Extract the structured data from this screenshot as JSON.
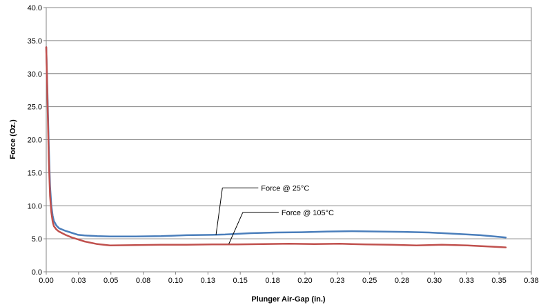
{
  "chart_data": {
    "type": "line",
    "title": "",
    "xlabel": "Plunger Air-Gap (in.)",
    "ylabel": "Force (Oz.)",
    "xlim": [
      0,
      0.38
    ],
    "ylim": [
      0,
      40
    ],
    "x_ticks": [
      "0.00",
      "0.03",
      "0.05",
      "0.08",
      "0.10",
      "0.13",
      "0.15",
      "0.18",
      "0.20",
      "0.23",
      "0.25",
      "0.28",
      "0.30",
      "0.33",
      "0.35",
      "0.38"
    ],
    "y_ticks": [
      "0.0",
      "5.0",
      "10.0",
      "15.0",
      "20.0",
      "25.0",
      "30.0",
      "35.0",
      "40.0"
    ],
    "grid": "horizontal",
    "legend": "none",
    "series": [
      {
        "name": "Force @ 25°C",
        "color": "#4a7ebb",
        "x": [
          0.0,
          0.001,
          0.002,
          0.003,
          0.004,
          0.005,
          0.006,
          0.008,
          0.01,
          0.015,
          0.02,
          0.025,
          0.03,
          0.04,
          0.05,
          0.07,
          0.09,
          0.11,
          0.13,
          0.14,
          0.16,
          0.18,
          0.2,
          0.22,
          0.24,
          0.26,
          0.28,
          0.3,
          0.32,
          0.34,
          0.36
        ],
        "y": [
          34.0,
          27.0,
          19.0,
          13.0,
          10.0,
          8.5,
          7.7,
          7.0,
          6.6,
          6.2,
          5.9,
          5.6,
          5.5,
          5.4,
          5.35,
          5.35,
          5.4,
          5.55,
          5.6,
          5.65,
          5.85,
          5.95,
          6.0,
          6.1,
          6.15,
          6.1,
          6.05,
          5.95,
          5.75,
          5.55,
          5.2
        ]
      },
      {
        "name": "Force @ 105°C",
        "color": "#c0504d",
        "x": [
          0.0,
          0.001,
          0.002,
          0.003,
          0.004,
          0.005,
          0.006,
          0.008,
          0.01,
          0.015,
          0.02,
          0.025,
          0.03,
          0.04,
          0.05,
          0.07,
          0.09,
          0.11,
          0.13,
          0.15,
          0.17,
          0.19,
          0.21,
          0.23,
          0.25,
          0.27,
          0.29,
          0.31,
          0.33,
          0.35,
          0.36
        ],
        "y": [
          34.0,
          26.0,
          17.0,
          11.5,
          9.0,
          7.6,
          6.9,
          6.4,
          6.1,
          5.6,
          5.2,
          4.9,
          4.6,
          4.2,
          4.0,
          4.05,
          4.1,
          4.1,
          4.15,
          4.15,
          4.2,
          4.25,
          4.2,
          4.25,
          4.15,
          4.1,
          4.0,
          4.1,
          4.0,
          3.8,
          3.7
        ]
      }
    ],
    "annotations": [
      {
        "text": "Force @ 25°C",
        "x": 0.133,
        "y": 5.6,
        "label_x": 0.138,
        "label_y": 12.7
      },
      {
        "text": "Force @ 105°C",
        "x": 0.143,
        "y": 4.2,
        "label_x": 0.154,
        "label_y": 9.0
      }
    ]
  }
}
